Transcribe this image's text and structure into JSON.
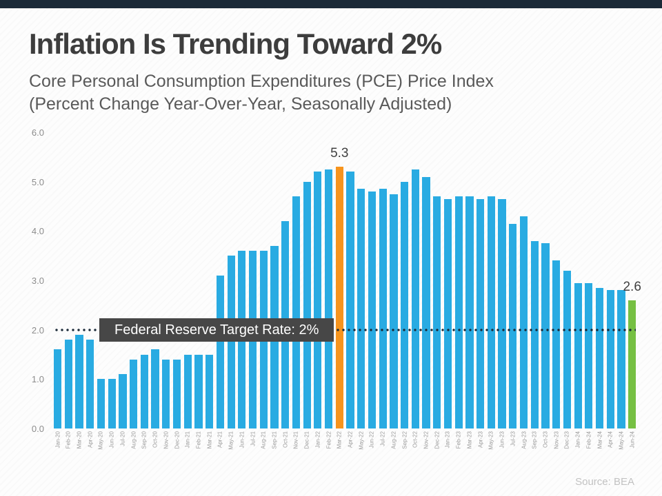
{
  "page": {
    "title": "Inflation Is Trending Toward 2%",
    "subtitle_line1": "Core Personal Consumption Expenditures (PCE) Price Index",
    "subtitle_line2": "(Percent Change Year-Over-Year, Seasonally Adjusted)",
    "source": "Source: BEA"
  },
  "colors": {
    "bar": "#29ABE2",
    "highlight_peak": "#F7941D",
    "highlight_latest": "#76C043",
    "top_bar": "#1B2A38",
    "target_line": "#1B2A38",
    "target_box_bg": "#474747",
    "target_box_text": "#FFFFFF"
  },
  "target_line": {
    "value": 2.0,
    "label": "Federal Reserve Target Rate: 2%"
  },
  "chart_data": {
    "type": "bar",
    "title": "Core PCE Price Index, Percent Change Year-Over-Year",
    "xlabel": "",
    "ylabel": "",
    "ylim": [
      0,
      6
    ],
    "yticks": [
      0,
      1,
      2,
      3,
      4,
      5,
      6
    ],
    "ytick_labels": [
      "0.0",
      "1.0",
      "2.0",
      "3.0",
      "4.0",
      "5.0",
      "6.0"
    ],
    "grid": false,
    "legend": false,
    "categories": [
      "Jan-20",
      "Feb-20",
      "Mar-20",
      "Apr-20",
      "May-20",
      "Jun-20",
      "Jul-20",
      "Aug-20",
      "Sep-20",
      "Oct-20",
      "Nov-20",
      "Dec-20",
      "Jan-21",
      "Feb-21",
      "Mar-21",
      "Apr-21",
      "May-21",
      "Jun-21",
      "Jul-21",
      "Aug-21",
      "Sep-21",
      "Oct-21",
      "Nov-21",
      "Dec-21",
      "Jan-22",
      "Feb-22",
      "Mar-22",
      "Apr-22",
      "May-22",
      "Jun-22",
      "Jul-22",
      "Aug-22",
      "Sep-22",
      "Oct-22",
      "Nov-22",
      "Dec-22",
      "Jan-23",
      "Feb-23",
      "Mar-23",
      "Apr-23",
      "May-23",
      "Jun-23",
      "Jul-23",
      "Aug-23",
      "Sep-23",
      "Oct-23",
      "Nov-23",
      "Dec-23",
      "Jan-24",
      "Feb-24",
      "Mar-24",
      "Apr-24",
      "May-24",
      "Jun-24"
    ],
    "values": [
      1.6,
      1.8,
      1.9,
      1.8,
      1.0,
      1.0,
      1.1,
      1.4,
      1.5,
      1.6,
      1.4,
      1.4,
      1.5,
      1.5,
      1.5,
      3.1,
      3.5,
      3.6,
      3.6,
      3.6,
      3.7,
      4.2,
      4.7,
      5.0,
      5.2,
      5.25,
      5.3,
      5.2,
      4.85,
      4.8,
      4.85,
      4.75,
      5.0,
      5.25,
      5.1,
      4.7,
      4.65,
      4.7,
      4.7,
      4.65,
      4.7,
      4.65,
      4.15,
      4.3,
      3.8,
      3.75,
      3.4,
      3.2,
      2.95,
      2.95,
      2.85,
      2.8,
      2.8,
      2.6
    ],
    "annotations": [
      {
        "category": "Mar-22",
        "label": "5.3",
        "color_key": "highlight_peak"
      },
      {
        "category": "Jun-24",
        "label": "2.6",
        "color_key": "highlight_latest"
      }
    ]
  }
}
